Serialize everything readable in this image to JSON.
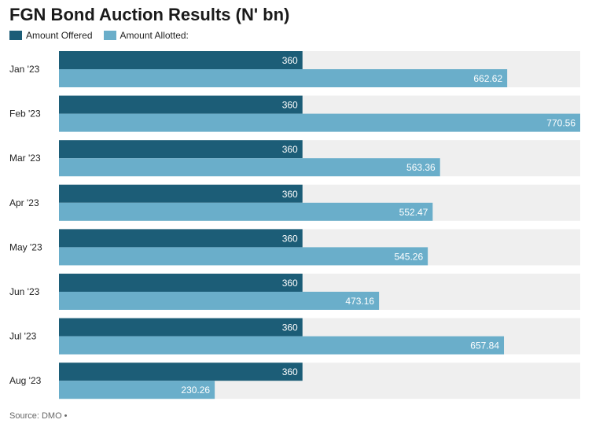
{
  "chart_data": {
    "type": "bar",
    "orientation": "horizontal",
    "title": "FGN Bond Auction Results (N' bn)",
    "categories": [
      "Jan '23",
      "Feb '23",
      "Mar '23",
      "Apr '23",
      "May '23",
      "Jun '23",
      "Jul '23",
      "Aug '23"
    ],
    "series": [
      {
        "name": "Amount Offered",
        "color": "#1c5d77",
        "values": [
          360,
          360,
          360,
          360,
          360,
          360,
          360,
          360
        ]
      },
      {
        "name": "Amount Allotted:",
        "color": "#6aaeca",
        "values": [
          662.62,
          770.56,
          563.36,
          552.47,
          545.26,
          473.16,
          657.84,
          230.26
        ]
      }
    ],
    "value_labels": [
      [
        "360",
        "360",
        "360",
        "360",
        "360",
        "360",
        "360",
        "360"
      ],
      [
        "662.62",
        "770.56",
        "563.36",
        "552.47",
        "545.26",
        "473.16",
        "657.84",
        "230.26"
      ]
    ],
    "xlim": [
      0,
      770.56
    ],
    "grid": false,
    "legend_position": "top-left",
    "track_color": "#efefef"
  },
  "source": "Source: DMO •"
}
